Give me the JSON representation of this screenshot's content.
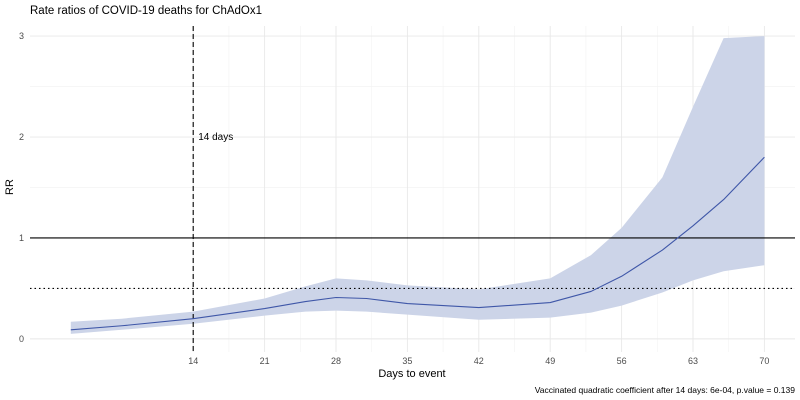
{
  "chart_data": {
    "type": "line",
    "title": "Rate ratios of COVID-19 deaths for ChAdOx1",
    "xlabel": "Days to event",
    "ylabel": "RR",
    "caption": "Vaccinated quadratic coefficient after 14 days: 6e-04, p.value = 0.139",
    "xlim": [
      -2,
      73
    ],
    "ylim": [
      -0.13,
      3.1
    ],
    "x_ticks": [
      14,
      21,
      28,
      35,
      42,
      49,
      56,
      63,
      70
    ],
    "x_tick_labels": [
      "14",
      "21",
      "28",
      "35",
      "42",
      "49",
      "56",
      "63",
      "70"
    ],
    "y_ticks": [
      0,
      1,
      2,
      3
    ],
    "y_tick_labels": [
      "0",
      "1",
      "2",
      "3"
    ],
    "grid": true,
    "colors": {
      "line": "#3f57a8",
      "band": "#ccd4e8",
      "reference": "#000000"
    },
    "series": [
      {
        "x": [
          2,
          7,
          14,
          21,
          25,
          28,
          31,
          35,
          42,
          49,
          53,
          56,
          60,
          63,
          66,
          70
        ],
        "y": [
          0.09,
          0.13,
          0.2,
          0.3,
          0.37,
          0.41,
          0.4,
          0.35,
          0.31,
          0.36,
          0.47,
          0.62,
          0.88,
          1.12,
          1.38,
          1.8
        ],
        "lower": [
          0.05,
          0.09,
          0.15,
          0.23,
          0.27,
          0.28,
          0.27,
          0.24,
          0.19,
          0.21,
          0.26,
          0.33,
          0.46,
          0.58,
          0.67,
          0.73
        ],
        "upper": [
          0.17,
          0.2,
          0.27,
          0.4,
          0.52,
          0.6,
          0.58,
          0.53,
          0.49,
          0.6,
          0.83,
          1.1,
          1.6,
          2.3,
          2.98,
          3.0
        ]
      }
    ],
    "reference_lines": [
      {
        "axis": "y",
        "value": 1,
        "style": "solid"
      },
      {
        "axis": "y",
        "value": 0.5,
        "style": "dotted"
      },
      {
        "axis": "x",
        "value": 14,
        "style": "dashed",
        "label": "14 days",
        "label_y": 2.0
      }
    ]
  }
}
